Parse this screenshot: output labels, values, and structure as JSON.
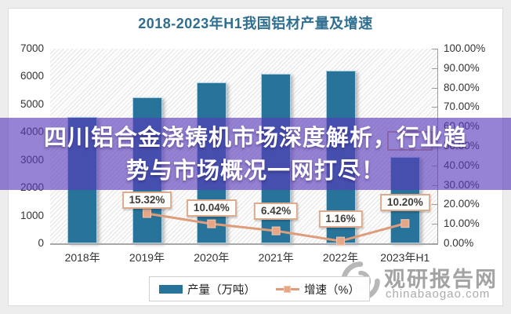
{
  "window": {
    "background": "#ededed",
    "card_background": "#ffffff"
  },
  "banner": {
    "line1": "四川铝合金浇铸机市场深度解析，行业趋",
    "line2": "势与市场概况一网打尽！",
    "background": "rgba(88,58,185,0.63)",
    "text_color": "#ffffff"
  },
  "watermark": {
    "brand": "观研报告网",
    "site": "chinabaogao.com",
    "color": "#a3a3a3",
    "logo": "swirl-icon"
  },
  "chart_data": {
    "type": "bar+line combo",
    "title": "2018-2023年H1我国铝材产量及增速",
    "title_color": "#2f6e8e",
    "categories": [
      "2018年",
      "2019年",
      "2020年",
      "2021年",
      "2022年",
      "2023年H1"
    ],
    "series": [
      {
        "name": "产量（万吨）",
        "type": "bar",
        "axis": "left",
        "color": "#27739a",
        "values": [
          4555,
          5252,
          5779,
          6105,
          6222,
          3100
        ]
      },
      {
        "name": "增速（%）",
        "type": "line",
        "axis": "right",
        "color": "#df9c7a",
        "values": [
          null,
          15.32,
          10.04,
          6.42,
          1.16,
          10.2
        ],
        "point_labels": [
          "",
          "15.32%",
          "10.04%",
          "6.42%",
          "1.16%",
          "10.20%"
        ]
      }
    ],
    "left_axis": {
      "min": 0,
      "max": 7000,
      "step": 1000,
      "tick_labels": [
        "0",
        "1000",
        "2000",
        "3000",
        "4000",
        "5000",
        "6000",
        "7000"
      ]
    },
    "right_axis": {
      "min": 0,
      "max": 100,
      "step": 10,
      "tick_labels": [
        "0.00%",
        "10.00%",
        "20.00%",
        "30.00%",
        "40.00%",
        "50.00%",
        "60.00%",
        "70.00%",
        "80.00%",
        "90.00%",
        "100.00%"
      ]
    },
    "legend": {
      "position": "bottom"
    },
    "grid": false,
    "plot_background": "diagonal-hatch"
  }
}
